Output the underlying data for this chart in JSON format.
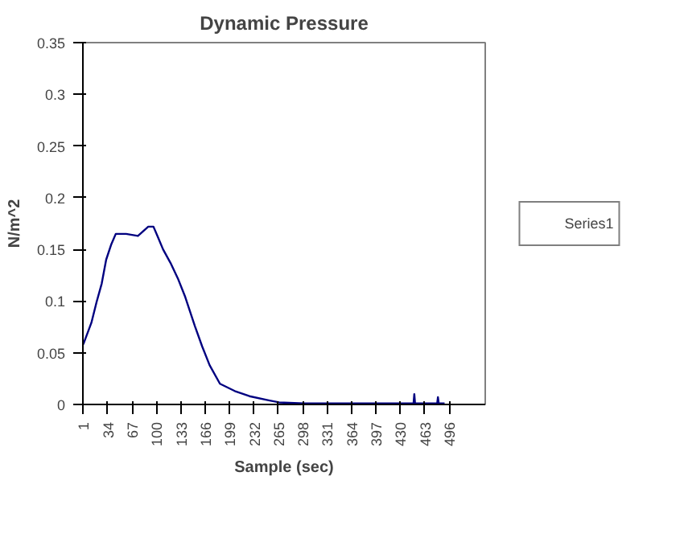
{
  "chart_data": {
    "type": "line",
    "title": "Dynamic Pressure",
    "xlabel": "Sample (sec)",
    "ylabel": "N/m^2",
    "x": [
      1,
      12,
      19,
      26,
      32,
      39,
      45,
      59,
      75,
      89,
      96,
      102,
      109,
      119,
      129,
      139,
      152,
      162,
      172,
      186,
      206,
      226,
      252,
      266,
      300,
      350,
      400,
      448,
      449,
      450,
      480,
      481,
      482,
      490
    ],
    "series": [
      {
        "name": "Series1",
        "color": "#000080",
        "values": [
          0.058,
          0.079,
          0.099,
          0.117,
          0.14,
          0.155,
          0.165,
          0.165,
          0.163,
          0.172,
          0.172,
          0.162,
          0.15,
          0.137,
          0.122,
          0.104,
          0.076,
          0.056,
          0.038,
          0.02,
          0.013,
          0.008,
          0.004,
          0.002,
          0.001,
          0.001,
          0.001,
          0.001,
          0.01,
          0.001,
          0.001,
          0.007,
          0.001,
          0.001
        ]
      }
    ],
    "xlim": [
      0.5,
      545
    ],
    "xticks": [
      1,
      34,
      67,
      100,
      133,
      166,
      199,
      232,
      265,
      298,
      331,
      364,
      397,
      430,
      463,
      496
    ],
    "ylim": [
      0,
      0.35
    ],
    "yticks": [
      0,
      0.05,
      0.1,
      0.15,
      0.2,
      0.25,
      0.3,
      0.35
    ],
    "grid": false,
    "legend": "right"
  }
}
